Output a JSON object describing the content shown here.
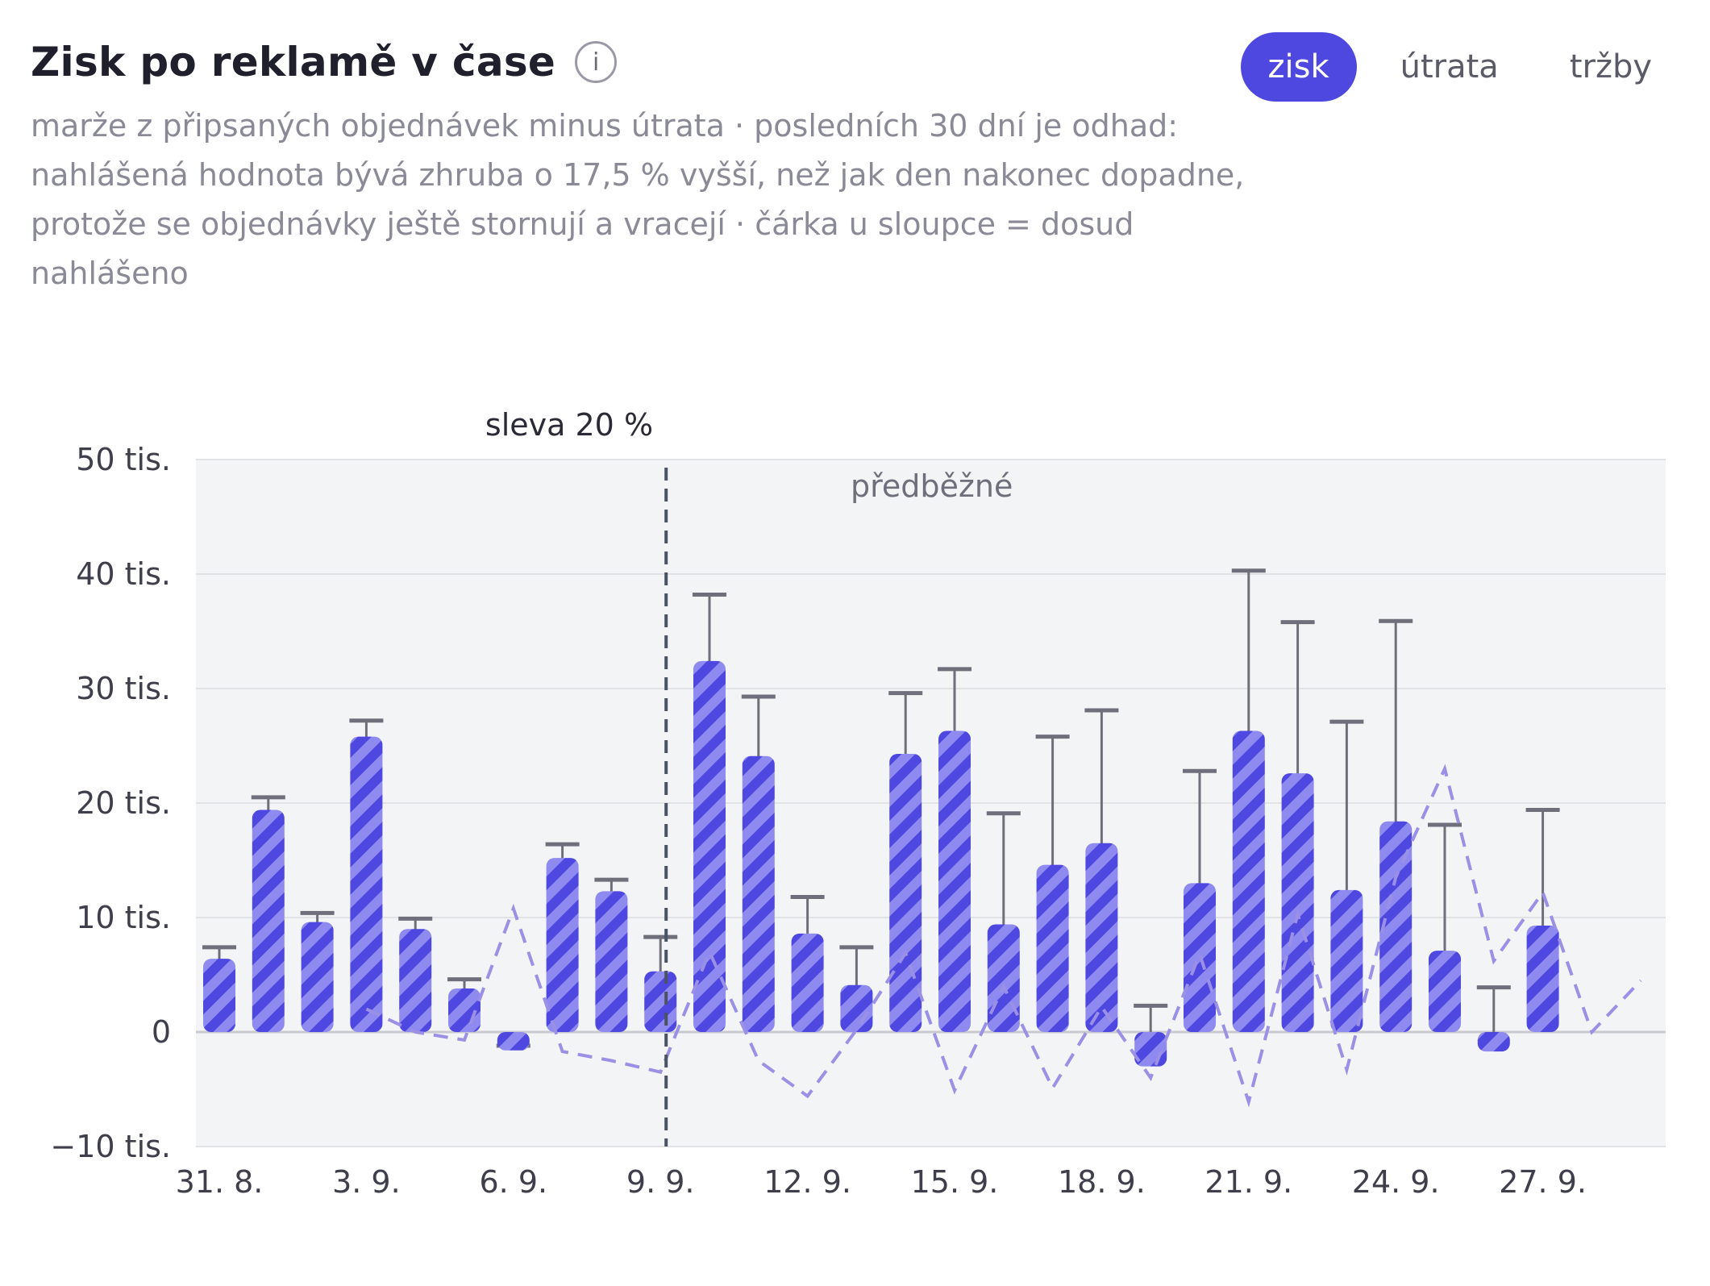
{
  "header": {
    "title": "Zisk po reklamě v čase",
    "info_glyph": "i",
    "subtitle": "marže z připsaných objednávek minus útrata · posledních 30 dní je odhad: nahlášená hodnota bývá zhruba o 17,5 % vyšší, než jak den nakonec dopadne, protože se objednávky ještě stornují a vracejí · čárka u sloupce = dosud nahlášeno"
  },
  "tabs": [
    {
      "label": "zisk",
      "active": true
    },
    {
      "label": "útrata",
      "active": false
    },
    {
      "label": "tržby",
      "active": false
    }
  ],
  "colors": {
    "bar": "#4e48e0",
    "bar_stripe": "#8e8af0",
    "reported_mark": "#6f6f7c",
    "dashed_line": "#9a90e6",
    "plot_bg": "#f3f4f6",
    "grid": "#e1e2e6",
    "annotation_line": "#4a5263"
  },
  "chart_data": {
    "type": "bar",
    "x": [
      "31. 8.",
      "1. 9.",
      "2. 9.",
      "3. 9.",
      "4. 9.",
      "5. 9.",
      "6. 9.",
      "7. 9.",
      "8. 9.",
      "9. 9.",
      "10. 9.",
      "11. 9.",
      "12. 9.",
      "13. 9.",
      "14. 9.",
      "15. 9.",
      "16. 9.",
      "17. 9.",
      "18. 9.",
      "19. 9.",
      "20. 9.",
      "21. 9.",
      "22. 9.",
      "23. 9.",
      "24. 9.",
      "25. 9.",
      "26. 9.",
      "27. 9.",
      "28. 9.",
      "29. 9."
    ],
    "x_tick_labels": [
      "31. 8.",
      "3. 9.",
      "6. 9.",
      "9. 9.",
      "12. 9.",
      "15. 9.",
      "18. 9.",
      "21. 9.",
      "24. 9.",
      "27. 9."
    ],
    "y_tick_labels": [
      "50 tis.",
      "40 tis.",
      "30 tis.",
      "20 tis.",
      "10 tis.",
      "0",
      "−10 tis."
    ],
    "y_ticks": [
      50000,
      40000,
      30000,
      20000,
      10000,
      0,
      -10000
    ],
    "ylim": [
      -10000,
      50000
    ],
    "series": [
      {
        "kind": "bar",
        "values": [
          6400,
          19400,
          9600,
          25800,
          9000,
          3800,
          -1600,
          15200,
          12300,
          5300,
          32400,
          24100,
          8600,
          4100,
          24300,
          26300,
          9400,
          14600,
          16500,
          -3000,
          13000,
          26300,
          22600,
          12400,
          18400,
          7100,
          -1700,
          9300,
          null,
          null
        ]
      },
      {
        "kind": "reported",
        "values": [
          7400,
          20500,
          10400,
          27200,
          9900,
          4600,
          -1200,
          16400,
          13300,
          8300,
          38200,
          29300,
          11800,
          7400,
          29600,
          31700,
          19100,
          25800,
          28100,
          2300,
          22800,
          40300,
          35800,
          27100,
          35900,
          18100,
          3900,
          19400,
          null,
          null
        ]
      },
      {
        "kind": "line",
        "values": [
          null,
          null,
          null,
          2000,
          0,
          -700,
          10800,
          -1700,
          -2500,
          -3500,
          7000,
          -2500,
          -5600,
          200,
          6900,
          -5100,
          4000,
          -4900,
          2200,
          -4000,
          6800,
          -6100,
          10300,
          -3300,
          13500,
          23000,
          6200,
          12200,
          0,
          4500
        ]
      }
    ],
    "annotations": [
      {
        "x": "9. 9.",
        "label": "sleva 20 %"
      },
      {
        "label": "předběžné"
      }
    ],
    "grid": true
  }
}
